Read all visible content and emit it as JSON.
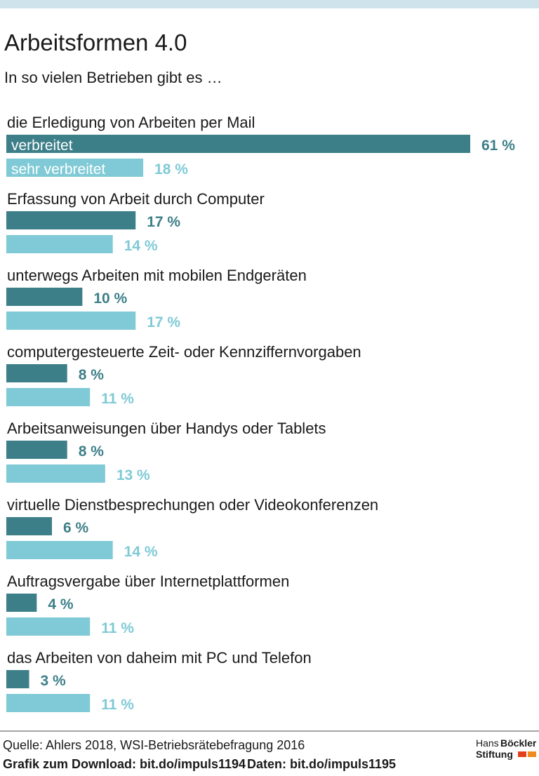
{
  "chart_data": {
    "type": "bar",
    "orientation": "horizontal",
    "title": "Arbeitsformen 4.0",
    "subtitle": "In so vielen Betrieben gibt es …",
    "categories": [
      "die Erledigung von Arbeiten per Mail",
      "Erfassung von Arbeit durch Computer",
      "unterwegs Arbeiten mit mobilen Endgeräten",
      "computergesteuerte Zeit- oder Kennziffernvorgaben",
      "Arbeitsanweisungen über Handys oder Tablets",
      "virtuelle Dienstbesprechungen oder Videokonferenzen",
      "Auftragsvergabe über Internetplattformen",
      "das Arbeiten von daheim mit PC und Telefon"
    ],
    "series": [
      {
        "name": "verbreitet",
        "color": "#3d7f88",
        "values": [
          61,
          17,
          10,
          8,
          8,
          6,
          4,
          3
        ],
        "value_labels": [
          "61 %",
          "17 %",
          "10 %",
          "8 %",
          "8 %",
          "6 %",
          "4 %",
          "3 %"
        ]
      },
      {
        "name": "sehr verbreitet",
        "color": "#7fcad6",
        "values": [
          18,
          14,
          17,
          11,
          13,
          14,
          11,
          11
        ],
        "value_labels": [
          "18 %",
          "14 %",
          "17 %",
          "11 %",
          "13 %",
          "14 %",
          "11 %",
          "11 %"
        ]
      }
    ]
  },
  "footer": {
    "source": "Quelle: Ahlers 2018, WSI-Betriebsrätebefragung 2016",
    "download": "Grafik zum Download: bit.do/impuls1194",
    "data": "Daten: bit.do/impuls1195",
    "logo_1": "Hans",
    "logo_2": "Böckler",
    "logo_3": "Stiftung"
  }
}
